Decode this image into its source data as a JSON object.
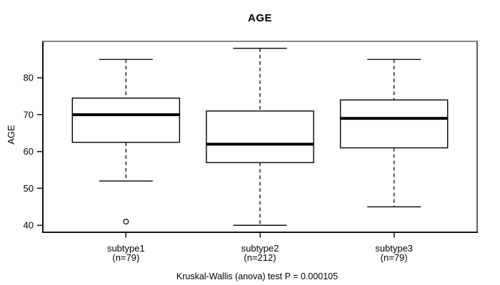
{
  "chart_data": {
    "type": "boxplot",
    "title": "AGE",
    "ylabel": "AGE",
    "caption": "Kruskal-Wallis (anova) test P = 0.000105",
    "y_ticks": [
      40,
      50,
      60,
      70,
      80
    ],
    "ylim": [
      38.1,
      89.9
    ],
    "grid": false,
    "legend": "none",
    "groups": [
      {
        "label": "subtype1",
        "sublabel": "(n=79)",
        "n": 79,
        "whisker_low": 52,
        "q1": 62.5,
        "median": 70,
        "q3": 74.5,
        "whisker_high": 85,
        "outliers": [
          41
        ]
      },
      {
        "label": "subtype2",
        "sublabel": "(n=212)",
        "n": 212,
        "whisker_low": 40,
        "q1": 57,
        "median": 62,
        "q3": 71,
        "whisker_high": 88,
        "outliers": []
      },
      {
        "label": "subtype3",
        "sublabel": "(n=79)",
        "n": 79,
        "whisker_low": 45,
        "q1": 61,
        "median": 69,
        "q3": 74,
        "whisker_high": 85,
        "outliers": []
      }
    ],
    "colors": {
      "background": "#ffffff",
      "box_fill": "#ffffff",
      "box_stroke": "#000000",
      "median": "#000000",
      "whisker": "#000000",
      "axis": "#111111",
      "border_top": "#858585",
      "border_right": "#5f5f5f",
      "border_bottom": "#141414",
      "border_left": "#141414",
      "text": "#000000"
    }
  }
}
